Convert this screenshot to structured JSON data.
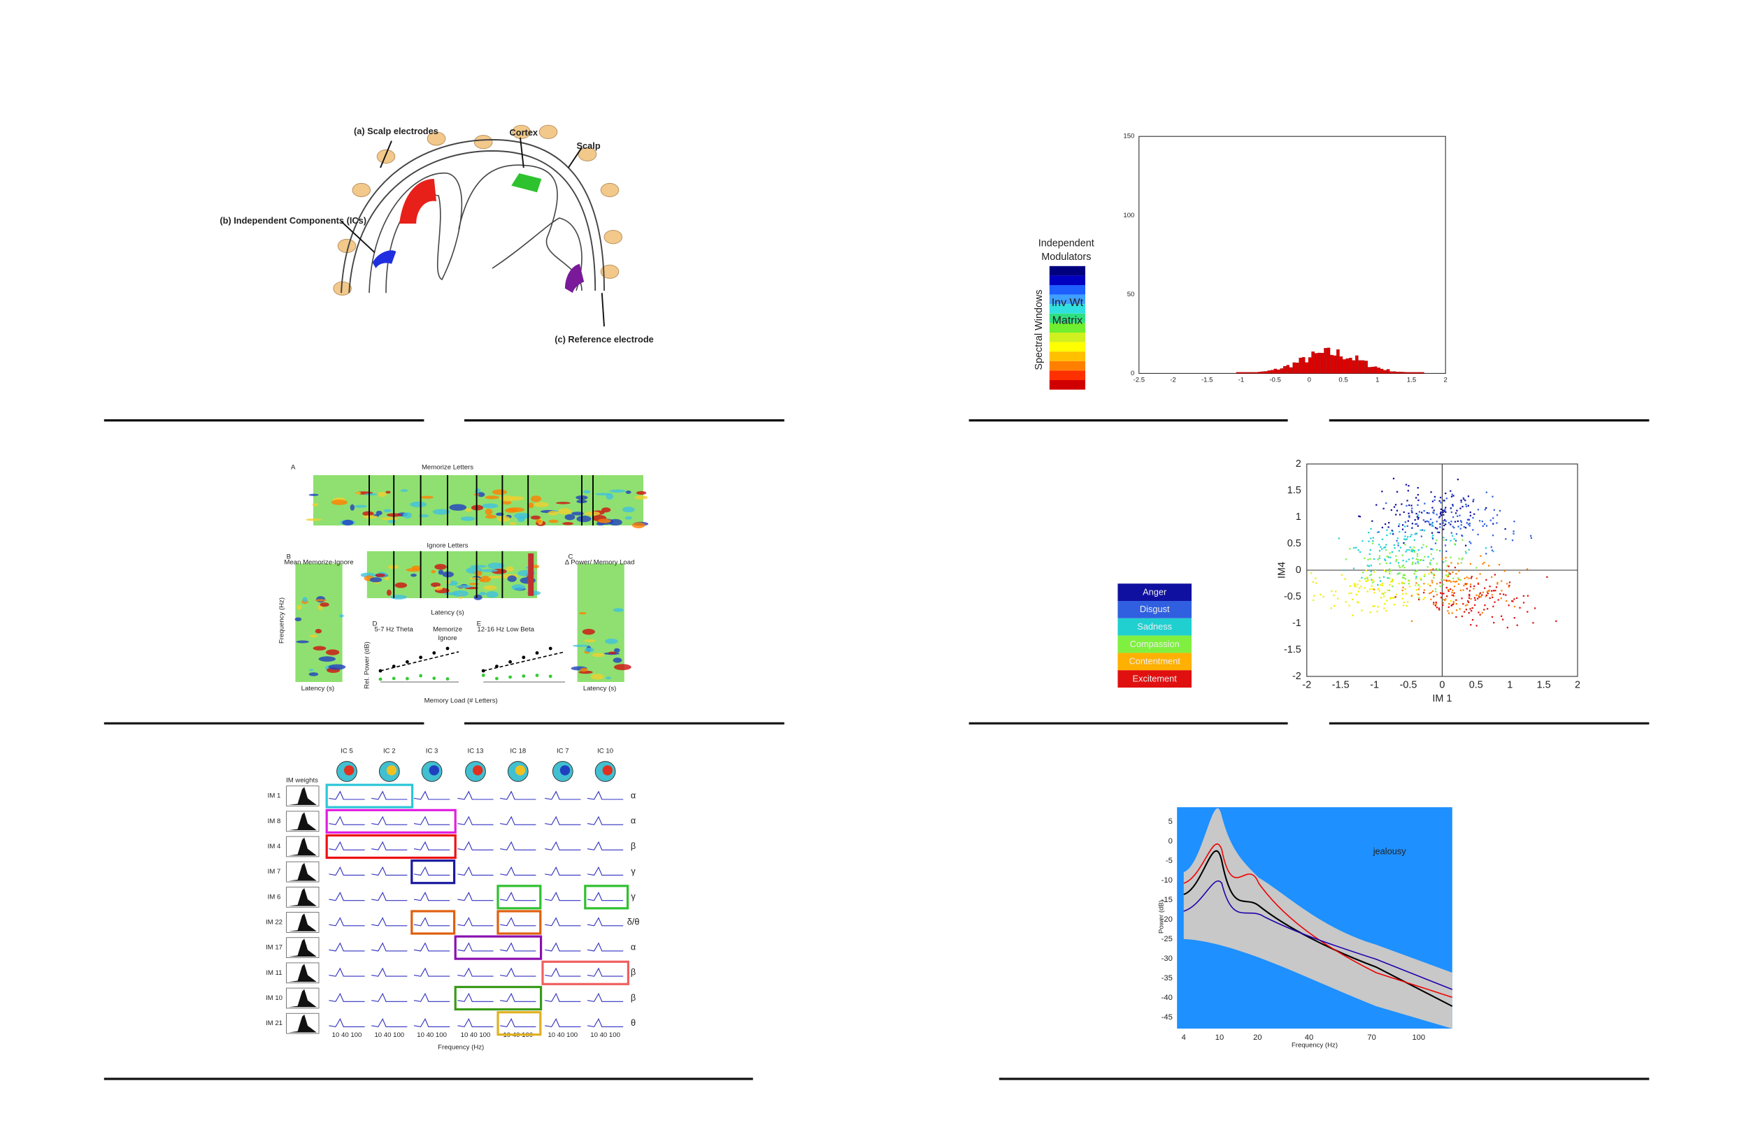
{
  "slides": [
    {
      "labels": [
        "(a) Scalp electrodes",
        "Cortex",
        "Scalp",
        "(b) Independent Components (ICs)",
        "(c) Reference electrode"
      ]
    },
    {
      "colorbar_title": [
        "Independent",
        "Modulators"
      ],
      "side_label": "Spectral Windows",
      "matrix_label": [
        "Inv Wt",
        "Matrix"
      ],
      "xticks": [
        "-2.5",
        "-2",
        "-1.5",
        "-1",
        "-0.5",
        "0",
        "0.5",
        "1",
        "1.5",
        "2"
      ],
      "yticks": [
        "150",
        "100",
        "50",
        "0"
      ]
    },
    {
      "panel_letters": [
        "A",
        "B",
        "C",
        "D",
        "E"
      ],
      "titles": [
        "Memorize Letters",
        "Ignore Letters",
        "Mean Memorize-Ignore",
        "Δ Power/ Memory Load",
        "5-7 Hz Theta",
        "12-16 Hz Low Beta"
      ],
      "axis_labels": [
        "Latency (s)",
        "Frequency (Hz)",
        "Memory Load (# Letters)",
        "Rel. Power (dB)"
      ],
      "legend": [
        "Memorize",
        "Ignore"
      ]
    },
    {
      "legend": [
        "Anger",
        "Disgust",
        "Sadness",
        "Compassion",
        "Contentment",
        "Excitement"
      ],
      "xlabel": "IM 1",
      "ylabel": "IM4",
      "xticks": [
        "-2",
        "-1.5",
        "-1",
        "-0.5",
        "0",
        "0.5",
        "1",
        "1.5",
        "2"
      ],
      "yticks": [
        "2",
        "1.5",
        "1",
        "0.5",
        "0",
        "-0.5",
        "-1",
        "-1.5",
        "-2"
      ]
    },
    {
      "header": "IM weights",
      "columns": [
        "IC 5",
        "IC 2",
        "IC 3",
        "IC 13",
        "IC 18",
        "IC 7",
        "IC 10"
      ],
      "rows": [
        "IM 1",
        "IM 8",
        "IM 4",
        "IM 7",
        "IM 6",
        "IM 22",
        "IM 17",
        "IM 11",
        "IM 10",
        "IM 21"
      ],
      "bands": [
        "α",
        "α",
        "β",
        "γ",
        "γ",
        "δ/θ",
        "α",
        "β",
        "β",
        "θ"
      ],
      "freq_ticks": "10 40 100",
      "xlabel": "Frequency (Hz)"
    },
    {
      "label": "jealousy",
      "ylabel": "Power (dB)",
      "xlabel": "Frequency (Hz)",
      "yticks": [
        "5",
        "0",
        "-5",
        "-10",
        "-15",
        "-20",
        "-25",
        "-30",
        "-35",
        "-40",
        "-45"
      ],
      "xticks": [
        "4",
        "10",
        "20",
        "40",
        "70",
        "100"
      ]
    }
  ]
}
